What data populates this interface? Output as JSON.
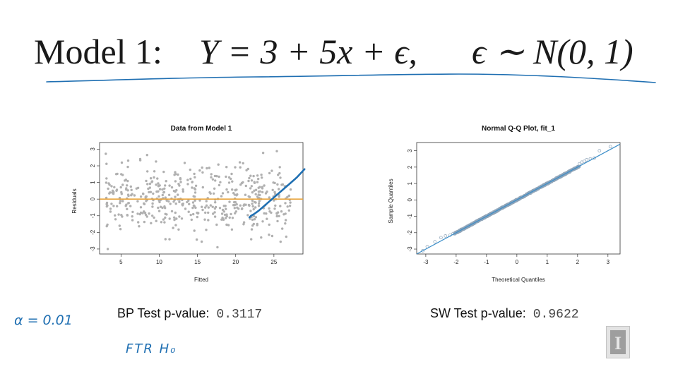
{
  "slide": {
    "title_prefix": "Model 1:",
    "title_equation": "Y = 3 + 5x + ϵ,",
    "title_error": "ϵ ∼ N(0, 1)"
  },
  "annotations": {
    "alpha": "α = 0.01",
    "decision": "FTR H₀",
    "ink_color": "#1f6fb2"
  },
  "tests": {
    "bp_label": "BP Test p-value:",
    "bp_value": "0.3117",
    "sw_label": "SW Test p-value:",
    "sw_value": "0.9622"
  },
  "logo": {
    "letter": "I"
  },
  "chart_data": [
    {
      "type": "scatter",
      "title": "Data from Model 1",
      "xlabel": "Fitted",
      "ylabel": "Residuals",
      "xlim": [
        2.2,
        28.8
      ],
      "ylim": [
        -3.3,
        3.4
      ],
      "xticks": [
        5,
        10,
        15,
        20,
        25
      ],
      "yticks": [
        -3,
        -2,
        -1,
        0,
        1,
        2,
        3
      ],
      "point_color": "#b0b0b0",
      "reference_line": {
        "y": 0,
        "color": "#e8a33d"
      },
      "annotation_stroke": {
        "color": "#1f6fb2",
        "x": [
          21.8,
          22.0,
          22.4,
          23.0,
          24.0,
          25.0,
          26.0,
          27.0,
          28.0,
          29.0
        ],
        "y": [
          -1.1,
          -1.0,
          -0.9,
          -0.7,
          -0.3,
          0.1,
          0.5,
          0.9,
          1.3,
          1.8
        ]
      },
      "n_points": 500
    },
    {
      "type": "scatter",
      "title": "Normal Q-Q Plot, fit_1",
      "xlabel": "Theoretical Quantiles",
      "ylabel": "Sample Quantiles",
      "xlim": [
        -3.3,
        3.4
      ],
      "ylim": [
        -3.3,
        3.5
      ],
      "xticks": [
        -3,
        -2,
        -1,
        0,
        1,
        2,
        3
      ],
      "yticks": [
        -3,
        -2,
        -1,
        0,
        1,
        2,
        3
      ],
      "point_color": "#8da3b8",
      "reference_line": {
        "slope": 1,
        "intercept": 0,
        "color": "#3b8ec9"
      },
      "tail_points": {
        "x": [
          2.06,
          2.14,
          2.22,
          2.3,
          2.42,
          2.55,
          2.72,
          3.08,
          -2.1,
          -2.2,
          -2.35,
          -2.5,
          -2.7,
          -2.95,
          -3.1
        ],
        "y": [
          2.2,
          2.3,
          2.35,
          2.45,
          2.5,
          2.55,
          3.0,
          3.25,
          -2.05,
          -2.15,
          -2.2,
          -2.3,
          -2.55,
          -2.85,
          -3.1
        ]
      },
      "n_points": 500
    }
  ]
}
